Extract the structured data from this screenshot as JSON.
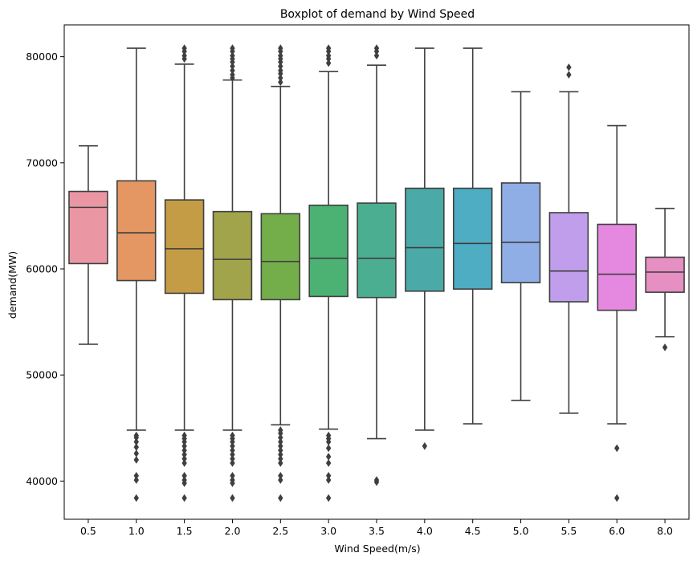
{
  "chart_data": {
    "type": "boxplot",
    "title": "Boxplot of demand by Wind Speed",
    "xlabel": "Wind Speed(m/s)",
    "ylabel": "demand(MW)",
    "ylim": [
      36400,
      83000
    ],
    "yticks": [
      40000,
      50000,
      60000,
      70000,
      80000
    ],
    "grid": false,
    "legend": "none",
    "categories": [
      "0.5",
      "1.0",
      "1.5",
      "2.0",
      "2.5",
      "3.0",
      "3.5",
      "4.0",
      "4.5",
      "5.0",
      "5.5",
      "6.0",
      "8.0"
    ],
    "colors": [
      "#ea96a3",
      "#e49762",
      "#c49c45",
      "#a1a44b",
      "#73ae4b",
      "#4cb273",
      "#4cae91",
      "#4baaa8",
      "#4eacc3",
      "#8faee5",
      "#c19eeb",
      "#e589e0",
      "#e58fc3"
    ],
    "boxes": [
      {
        "category": "0.5",
        "whisker_low": 52900,
        "q1": 60500,
        "median": 65800,
        "q3": 67300,
        "whisker_high": 71600,
        "outliers": []
      },
      {
        "category": "1.0",
        "whisker_low": 44800,
        "q1": 58900,
        "median": 63400,
        "q3": 68300,
        "whisker_high": 80800,
        "outliers": [
          44300,
          44100,
          43700,
          43200,
          42600,
          42000,
          40500,
          40100,
          38400
        ]
      },
      {
        "category": "1.5",
        "whisker_low": 44800,
        "q1": 57700,
        "median": 61900,
        "q3": 66500,
        "whisker_high": 79300,
        "outliers": [
          80800,
          80500,
          80100,
          79800,
          44300,
          44000,
          43700,
          43300,
          42900,
          42500,
          42100,
          41700,
          40500,
          40100,
          39800,
          38400
        ]
      },
      {
        "category": "2.0",
        "whisker_low": 44800,
        "q1": 57100,
        "median": 60900,
        "q3": 65400,
        "whisker_high": 77800,
        "outliers": [
          80800,
          80500,
          80100,
          79800,
          79500,
          79100,
          78700,
          78300,
          78000,
          44300,
          44000,
          43700,
          43300,
          42900,
          42500,
          42100,
          41700,
          40500,
          40100,
          39800,
          38400
        ]
      },
      {
        "category": "2.5",
        "whisker_low": 45300,
        "q1": 57100,
        "median": 60700,
        "q3": 65200,
        "whisker_high": 77200,
        "outliers": [
          80800,
          80500,
          80100,
          79800,
          79500,
          79100,
          78700,
          78400,
          78000,
          77600,
          44800,
          44500,
          44100,
          43700,
          43300,
          42900,
          42500,
          42100,
          41700,
          40500,
          40100,
          38400
        ]
      },
      {
        "category": "3.0",
        "whisker_low": 44900,
        "q1": 57400,
        "median": 61000,
        "q3": 66000,
        "whisker_high": 78600,
        "outliers": [
          80800,
          80500,
          80100,
          79800,
          79400,
          44300,
          44000,
          43700,
          43100,
          42300,
          41700,
          40500,
          40100,
          38400
        ]
      },
      {
        "category": "3.5",
        "whisker_low": 44000,
        "q1": 57300,
        "median": 61000,
        "q3": 66200,
        "whisker_high": 79200,
        "outliers": [
          80800,
          80500,
          80100,
          40100,
          39900
        ]
      },
      {
        "category": "4.0",
        "whisker_low": 44800,
        "q1": 57900,
        "median": 62000,
        "q3": 67600,
        "whisker_high": 80800,
        "outliers": [
          43300
        ]
      },
      {
        "category": "4.5",
        "whisker_low": 45400,
        "q1": 58100,
        "median": 62400,
        "q3": 67600,
        "whisker_high": 80800,
        "outliers": []
      },
      {
        "category": "5.0",
        "whisker_low": 47600,
        "q1": 58700,
        "median": 62500,
        "q3": 68100,
        "whisker_high": 76700,
        "outliers": []
      },
      {
        "category": "5.5",
        "whisker_low": 46400,
        "q1": 56900,
        "median": 59800,
        "q3": 65300,
        "whisker_high": 76700,
        "outliers": [
          79000,
          78300
        ]
      },
      {
        "category": "6.0",
        "whisker_low": 45400,
        "q1": 56100,
        "median": 59500,
        "q3": 64200,
        "whisker_high": 73500,
        "outliers": [
          43100,
          38400
        ]
      },
      {
        "category": "8.0",
        "whisker_low": 53600,
        "q1": 57800,
        "median": 59700,
        "q3": 61100,
        "whisker_high": 65700,
        "outliers": [
          52600
        ]
      }
    ]
  }
}
